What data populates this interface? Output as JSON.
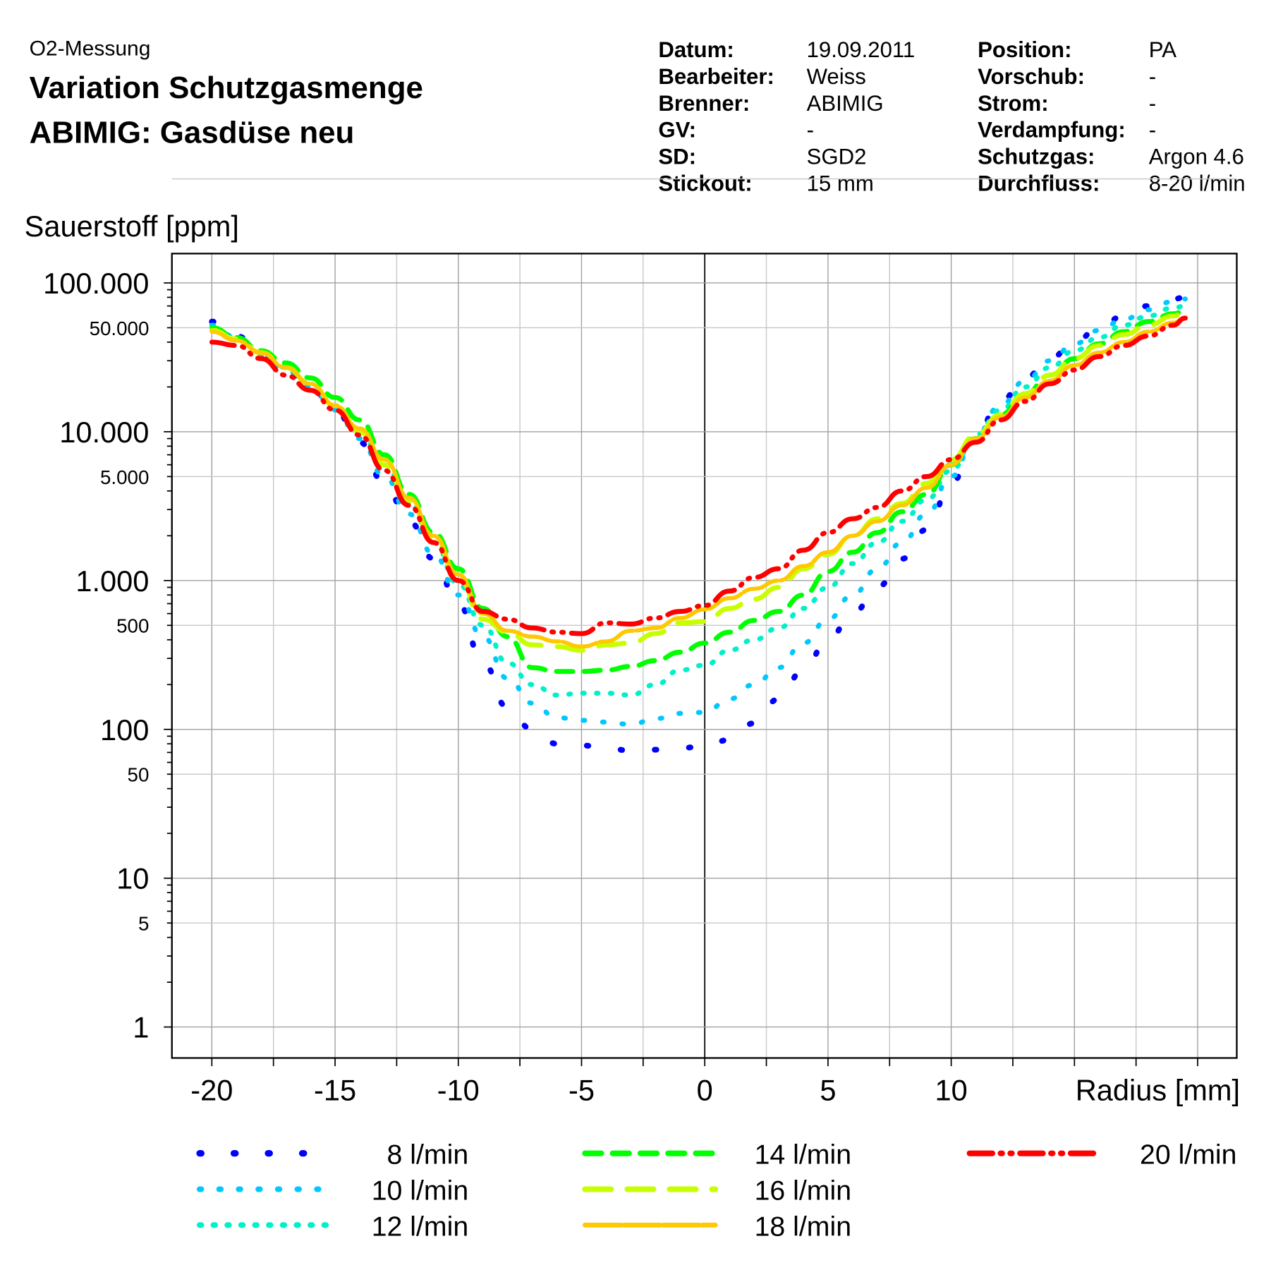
{
  "header": {
    "overline": "O2-Messung",
    "title_line1": "Variation Schutzgasmenge",
    "title_line2": "ABIMIG: Gasdüse neu",
    "info_left": [
      {
        "label": "Datum:",
        "value": "19.09.2011"
      },
      {
        "label": "Bearbeiter:",
        "value": "Weiss"
      },
      {
        "label": "Brenner:",
        "value": "ABIMIG"
      },
      {
        "label": "GV:",
        "value": "-"
      },
      {
        "label": "SD:",
        "value": "SGD2"
      },
      {
        "label": "Stickout:",
        "value": "15 mm"
      }
    ],
    "info_right": [
      {
        "label": "Position:",
        "value": "PA"
      },
      {
        "label": "Vorschub:",
        "value": "-"
      },
      {
        "label": "Strom:",
        "value": "-"
      },
      {
        "label": "Verdampfung:",
        "value": "-"
      },
      {
        "label": "Schutzgas:",
        "value": "Argon 4.6"
      },
      {
        "label": "Durchfluss:",
        "value": "8-20 l/min"
      }
    ]
  },
  "chart_data": {
    "type": "line",
    "ylabel": "Sauerstoff [ppm]",
    "xlabel": "Radius [mm]",
    "yscale": "log",
    "ylim": [
      0.6,
      160000
    ],
    "xlim": [
      -21.6,
      21.6
    ],
    "grid": true,
    "x_ticks": [
      -20,
      -15,
      -10,
      -5,
      0,
      5,
      10
    ],
    "x_tick_labels": [
      "-20",
      "-15",
      "-10",
      "-5",
      "0",
      "5",
      "10"
    ],
    "y_major_ticks": [
      1,
      10,
      100,
      1000,
      10000,
      100000
    ],
    "y_major_labels": [
      "1",
      "10",
      "100",
      "1.000",
      "10.000",
      "100.000"
    ],
    "y_minor_ticks": [
      5,
      50,
      500,
      5000,
      50000
    ],
    "y_minor_labels": [
      "5",
      "50",
      "500",
      "5.000",
      "50.000"
    ],
    "legend_position": "bottom",
    "x": [
      -20,
      -19,
      -18,
      -17,
      -16,
      -15,
      -14,
      -13,
      -12,
      -11,
      -10,
      -9,
      -8,
      -7,
      -6,
      -5,
      -4,
      -3,
      -2,
      -1,
      0,
      1,
      2,
      3,
      4,
      5,
      6,
      7,
      8,
      9,
      10,
      11,
      12,
      13,
      14,
      15,
      16,
      17,
      18,
      19,
      19.5
    ],
    "series": [
      {
        "name": "8 l/min",
        "color": "#0000ff",
        "style": "dot-sparse",
        "values": [
          55000,
          44000,
          34000,
          26000,
          20000,
          14000,
          8500,
          4500,
          2500,
          1400,
          700,
          280,
          140,
          100,
          80,
          78,
          75,
          72,
          73,
          75,
          77,
          85,
          110,
          160,
          250,
          400,
          600,
          900,
          1400,
          2200,
          4500,
          9500,
          16000,
          23000,
          31000,
          40000,
          50000,
          60000,
          70000,
          78000,
          80000
        ]
      },
      {
        "name": "10 l/min",
        "color": "#00c8ff",
        "style": "dot",
        "values": [
          52000,
          43000,
          33000,
          26000,
          20000,
          14000,
          9000,
          5000,
          2800,
          1500,
          800,
          420,
          220,
          150,
          120,
          115,
          112,
          108,
          118,
          128,
          130,
          160,
          200,
          260,
          380,
          550,
          800,
          1200,
          1800,
          2800,
          5000,
          9500,
          15000,
          22000,
          30000,
          39000,
          48000,
          57000,
          66000,
          75000,
          78000
        ]
      },
      {
        "name": "12 l/min",
        "color": "#00f0c8",
        "style": "dot-dense",
        "values": [
          50000,
          43000,
          34000,
          27000,
          21000,
          15000,
          10000,
          6000,
          3300,
          1800,
          950,
          500,
          280,
          200,
          170,
          175,
          175,
          170,
          200,
          250,
          270,
          340,
          400,
          480,
          650,
          900,
          1300,
          1800,
          2500,
          3500,
          5500,
          9500,
          14000,
          20000,
          27000,
          35000,
          43000,
          52000,
          60000,
          68000,
          70000
        ]
      },
      {
        "name": "14 l/min",
        "color": "#00ff00",
        "style": "dash",
        "values": [
          50000,
          43000,
          35000,
          29000,
          23000,
          17000,
          12000,
          7000,
          3800,
          2100,
          1200,
          650,
          420,
          260,
          245,
          245,
          250,
          265,
          290,
          330,
          380,
          450,
          540,
          620,
          800,
          1150,
          1550,
          2100,
          2900,
          3800,
          6000,
          9000,
          13000,
          18000,
          24000,
          31000,
          39000,
          47000,
          55000,
          62000,
          65000
        ]
      },
      {
        "name": "16 l/min",
        "color": "#c8ff00",
        "style": "long-dash",
        "values": [
          48000,
          42000,
          34000,
          27000,
          21000,
          15000,
          10000,
          6000,
          3400,
          1900,
          1050,
          550,
          450,
          370,
          360,
          340,
          370,
          380,
          440,
          520,
          530,
          650,
          750,
          900,
          1200,
          1500,
          2000,
          2600,
          3300,
          4500,
          6500,
          9500,
          13000,
          18000,
          24000,
          31000,
          38000,
          45000,
          52000,
          60000,
          63000
        ]
      },
      {
        "name": "18 l/min",
        "color": "#ffc800",
        "style": "solid-dash",
        "values": [
          47000,
          41000,
          34000,
          27000,
          21000,
          15000,
          10500,
          6500,
          3600,
          2000,
          1100,
          600,
          460,
          420,
          390,
          360,
          390,
          460,
          480,
          560,
          640,
          760,
          880,
          1000,
          1250,
          1550,
          2000,
          2500,
          3200,
          4200,
          6000,
          9000,
          12500,
          17000,
          22000,
          28000,
          34000,
          40000,
          47000,
          54000,
          58000
        ]
      },
      {
        "name": "20 l/min",
        "color": "#ff0000",
        "style": "dash-dot-dot",
        "values": [
          40000,
          38000,
          31000,
          24000,
          19000,
          14000,
          9500,
          5500,
          3200,
          1800,
          1000,
          620,
          550,
          480,
          450,
          440,
          520,
          510,
          560,
          620,
          680,
          850,
          1050,
          1200,
          1600,
          2100,
          2600,
          3100,
          4000,
          5000,
          6500,
          8500,
          12000,
          16000,
          21000,
          26000,
          32000,
          38000,
          44000,
          52000,
          58000
        ]
      }
    ]
  }
}
